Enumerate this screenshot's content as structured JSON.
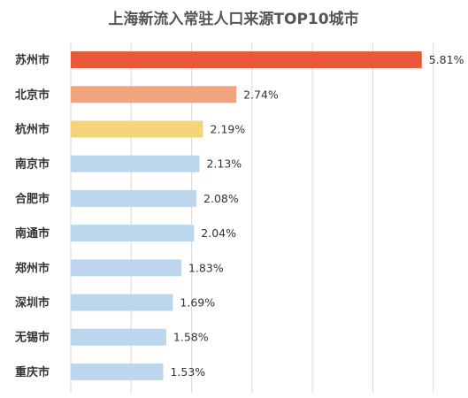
{
  "chart_data": {
    "type": "bar",
    "orientation": "horizontal",
    "title": "上海新流入常驻人口来源TOP10城市",
    "categories": [
      "苏州市",
      "北京市",
      "杭州市",
      "南京市",
      "合肥市",
      "南通市",
      "郑州市",
      "深圳市",
      "无锡市",
      "重庆市"
    ],
    "values": [
      5.81,
      2.74,
      2.19,
      2.13,
      2.08,
      2.04,
      1.83,
      1.69,
      1.58,
      1.53
    ],
    "value_labels": [
      "5.81%",
      "2.74%",
      "2.19%",
      "2.13%",
      "2.08%",
      "2.04%",
      "1.83%",
      "1.69%",
      "1.58%",
      "1.53%"
    ],
    "xlim": [
      0,
      7
    ],
    "grid": true,
    "colors": [
      "#e8593a",
      "#f2a47f",
      "#f5d57a",
      "#bcd6ee",
      "#bcd6ee",
      "#bcd6ee",
      "#bcd6ee",
      "#bcd6ee",
      "#bcd6ee",
      "#bcd6ee"
    ]
  }
}
